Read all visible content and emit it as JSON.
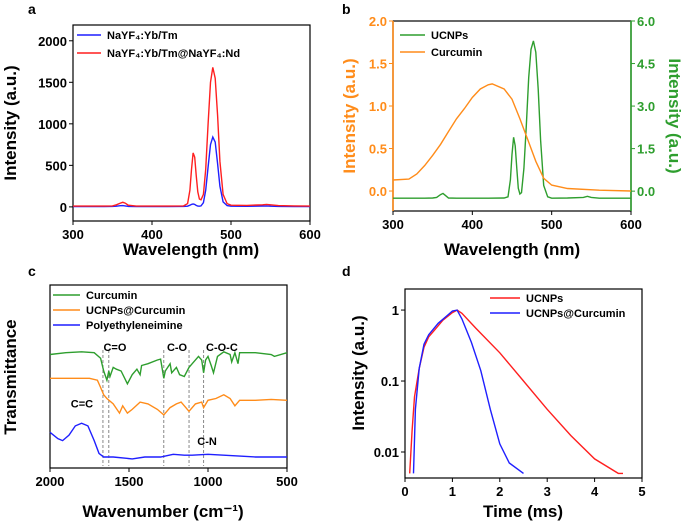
{
  "chart_data": [
    {
      "panel": "a",
      "type": "line",
      "xlabel": "Wavelength (nm)",
      "ylabel": "Intensity (a.u.)",
      "xlim": [
        300,
        600
      ],
      "ylim": [
        -170,
        2190
      ],
      "xticks": [
        300,
        400,
        500,
        600
      ],
      "yticks": [
        0,
        500,
        1000,
        1500,
        2000
      ],
      "legend_position": "top-left",
      "series": [
        {
          "name": "NaYF₄:Yb/Tm",
          "color": "#1f1fff",
          "x": [
            300,
            320,
            340,
            350,
            355,
            360,
            363,
            366,
            370,
            380,
            400,
            420,
            440,
            445,
            448,
            450,
            452,
            454,
            456,
            458,
            460,
            462,
            465,
            468,
            471,
            474,
            477,
            480,
            483,
            486,
            490,
            495,
            500,
            520,
            540,
            545,
            550,
            560,
            580,
            600
          ],
          "y": [
            5,
            5,
            5,
            6,
            8,
            14,
            15,
            12,
            6,
            5,
            5,
            5,
            6,
            8,
            20,
            30,
            35,
            30,
            18,
            10,
            8,
            12,
            50,
            200,
            480,
            750,
            840,
            780,
            520,
            250,
            60,
            15,
            8,
            7,
            9,
            12,
            8,
            6,
            5,
            5
          ]
        },
        {
          "name": "NaYF₄:Yb/Tm@NaYF₄:Nd",
          "color": "#ff1f1f",
          "x": [
            300,
            320,
            340,
            350,
            355,
            360,
            363,
            366,
            370,
            380,
            400,
            420,
            440,
            445,
            448,
            450,
            452,
            454,
            456,
            458,
            460,
            462,
            465,
            468,
            471,
            474,
            477,
            480,
            483,
            486,
            490,
            495,
            500,
            520,
            540,
            545,
            550,
            560,
            580,
            600
          ],
          "y": [
            10,
            10,
            10,
            12,
            25,
            45,
            55,
            45,
            20,
            10,
            10,
            10,
            12,
            40,
            200,
            450,
            650,
            600,
            380,
            180,
            95,
            85,
            150,
            450,
            1000,
            1500,
            1680,
            1550,
            1100,
            550,
            150,
            40,
            20,
            18,
            25,
            30,
            25,
            15,
            12,
            10
          ]
        }
      ]
    },
    {
      "panel": "b",
      "type": "line",
      "xlabel": "Wavelength (nm)",
      "ylabel_left": "Intensity (a.u.)",
      "ylabel_right": "Intensity (a.u.)",
      "xlim": [
        300,
        600
      ],
      "ylim_left": [
        -0.235,
        2.0
      ],
      "ylim_right": [
        -0.7,
        6.0
      ],
      "xticks": [
        300,
        400,
        500,
        600
      ],
      "yticks_left": [
        "0.0",
        "0.5",
        "1.0",
        "1.5",
        "2.0"
      ],
      "yticks_right": [
        "0.0",
        "1.5",
        "3.0",
        "4.5",
        "6.0"
      ],
      "left_axis_color": "#ff8c1a",
      "right_axis_color": "#2e9e2e",
      "legend_position": "top-left",
      "series": [
        {
          "name": "UCNPs",
          "color": "#2e9e2e",
          "axis": "right",
          "x": [
            300,
            320,
            340,
            350,
            355,
            360,
            363,
            366,
            370,
            380,
            400,
            420,
            440,
            445,
            448,
            450,
            452,
            454,
            456,
            458,
            460,
            462,
            465,
            468,
            471,
            474,
            477,
            480,
            483,
            486,
            490,
            495,
            500,
            520,
            540,
            545,
            550,
            560,
            580,
            600
          ],
          "y": [
            -0.25,
            -0.25,
            -0.25,
            -0.24,
            -0.22,
            -0.12,
            -0.08,
            -0.15,
            -0.24,
            -0.25,
            -0.25,
            -0.25,
            -0.24,
            -0.2,
            0.4,
            1.3,
            1.9,
            1.6,
            0.8,
            0.1,
            -0.1,
            -0.05,
            0.8,
            2.3,
            4.0,
            5.0,
            5.3,
            4.9,
            3.6,
            1.8,
            0.2,
            -0.2,
            -0.25,
            -0.24,
            -0.22,
            -0.18,
            -0.22,
            -0.25,
            -0.25,
            -0.25
          ]
        },
        {
          "name": "Curcumin",
          "color": "#ff8c1a",
          "axis": "left",
          "x": [
            300,
            320,
            330,
            340,
            350,
            360,
            370,
            380,
            390,
            400,
            410,
            420,
            425,
            440,
            450,
            460,
            470,
            480,
            490,
            500,
            520,
            560,
            600
          ],
          "y": [
            0.13,
            0.14,
            0.2,
            0.3,
            0.42,
            0.55,
            0.7,
            0.85,
            0.97,
            1.1,
            1.2,
            1.25,
            1.26,
            1.2,
            1.08,
            0.85,
            0.6,
            0.35,
            0.15,
            0.07,
            0.03,
            0.01,
            0.0
          ]
        }
      ]
    },
    {
      "panel": "c",
      "type": "line",
      "xlabel": "Wavenumber (cm⁻¹)",
      "ylabel": "Transmittance",
      "xlim": [
        2000,
        500
      ],
      "xticks": [
        2000,
        1500,
        1000,
        500
      ],
      "legend_position": "top-left",
      "series": [
        {
          "name": "Curcumin",
          "color": "#2e9e2e",
          "x": [
            2000,
            1900,
            1800,
            1720,
            1680,
            1660,
            1640,
            1628,
            1620,
            1600,
            1580,
            1550,
            1510,
            1480,
            1450,
            1430,
            1420,
            1380,
            1320,
            1300,
            1280,
            1270,
            1240,
            1230,
            1200,
            1180,
            1150,
            1120,
            1100,
            1060,
            1040,
            1028,
            1015,
            1000,
            980,
            965,
            940,
            900,
            860,
            850,
            830,
            810,
            800,
            700,
            600,
            580,
            500
          ],
          "y": [
            6.2,
            6.3,
            6.35,
            6.3,
            6.0,
            5.3,
            4.8,
            5.3,
            5.0,
            5.5,
            5.4,
            5.3,
            4.6,
            5.1,
            5.4,
            5.1,
            5.6,
            5.7,
            5.9,
            5.95,
            4.9,
            5.3,
            5.7,
            5.2,
            5.5,
            5.1,
            5.0,
            5.5,
            5.7,
            6.1,
            5.9,
            5.2,
            5.9,
            6.1,
            5.6,
            5.2,
            6.1,
            6.35,
            6.2,
            5.8,
            6.3,
            5.7,
            6.3,
            6.3,
            6.2,
            6.1,
            6.3
          ]
        },
        {
          "name": "UCNPs@Curcumin",
          "color": "#ff8c1a",
          "x": [
            2000,
            1750,
            1700,
            1680,
            1660,
            1640,
            1600,
            1560,
            1540,
            1510,
            1480,
            1430,
            1380,
            1320,
            1280,
            1240,
            1200,
            1170,
            1150,
            1120,
            1080,
            1040,
            1028,
            1000,
            950,
            900,
            860,
            830,
            800,
            700,
            600,
            500
          ],
          "y": [
            4.9,
            4.9,
            4.8,
            4.4,
            4.0,
            3.8,
            3.5,
            3.0,
            3.4,
            3.0,
            3.2,
            3.6,
            3.5,
            3.2,
            2.9,
            3.3,
            3.5,
            3.6,
            3.4,
            3.1,
            3.5,
            3.6,
            3.3,
            3.7,
            3.8,
            4.0,
            3.8,
            3.4,
            3.7,
            3.7,
            3.75,
            3.7
          ]
        },
        {
          "name": "Polyethyleneimine",
          "color": "#1f1fff",
          "x": [
            2000,
            1950,
            1920,
            1880,
            1840,
            1800,
            1760,
            1720,
            1690,
            1660,
            1600,
            1480,
            1400,
            1300,
            1220,
            1150,
            1100,
            1000,
            900,
            800,
            700,
            600,
            500
          ],
          "y": [
            1.95,
            1.6,
            1.5,
            1.8,
            2.3,
            2.45,
            2.3,
            1.5,
            0.8,
            0.6,
            0.6,
            0.5,
            0.6,
            0.6,
            0.75,
            0.7,
            0.7,
            0.75,
            0.7,
            0.65,
            0.6,
            0.6,
            0.6
          ]
        }
      ],
      "marker_lines": [
        1665,
        1628,
        1280,
        1120,
        1028
      ],
      "annotations": [
        {
          "text": "C=O",
          "x": 1589,
          "y": 6.4
        },
        {
          "text": "C-O",
          "x": 1196,
          "y": 6.4
        },
        {
          "text": "C-O-C",
          "x": 912,
          "y": 6.4
        },
        {
          "text": "C=C",
          "x": 1798,
          "y": 3.3
        },
        {
          "text": "C-N",
          "x": 1006,
          "y": 1.25
        }
      ]
    },
    {
      "panel": "d",
      "type": "line",
      "xlabel": "Time (ms)",
      "ylabel": "Intensity (a.u.)",
      "xlim": [
        0,
        5
      ],
      "ylim": [
        0.0043,
        1.98
      ],
      "yscale": "log",
      "xticks": [
        0,
        1,
        2,
        3,
        4,
        5
      ],
      "yticks": [
        "0.01",
        "0.1",
        "1"
      ],
      "legend_position": "top-right",
      "series": [
        {
          "name": "UCNPs",
          "color": "#ff1f1f",
          "x": [
            0.1,
            0.15,
            0.2,
            0.3,
            0.4,
            0.5,
            0.6,
            0.8,
            1.0,
            1.1,
            1.2,
            1.5,
            2.0,
            2.5,
            3.0,
            3.5,
            4.0,
            4.5,
            4.6
          ],
          "y": [
            0.005,
            0.02,
            0.06,
            0.15,
            0.3,
            0.42,
            0.5,
            0.72,
            0.92,
            1.0,
            0.9,
            0.55,
            0.25,
            0.1,
            0.04,
            0.017,
            0.008,
            0.005,
            0.005
          ]
        },
        {
          "name": "UCNPs@Curcumin",
          "color": "#1f1fff",
          "x": [
            0.18,
            0.22,
            0.3,
            0.4,
            0.5,
            0.7,
            0.9,
            1.0,
            1.1,
            1.2,
            1.4,
            1.6,
            1.8,
            2.0,
            2.2,
            2.5
          ],
          "y": [
            0.005,
            0.04,
            0.15,
            0.33,
            0.45,
            0.65,
            0.85,
            0.97,
            1.0,
            0.75,
            0.35,
            0.14,
            0.04,
            0.013,
            0.007,
            0.005
          ]
        }
      ]
    }
  ]
}
